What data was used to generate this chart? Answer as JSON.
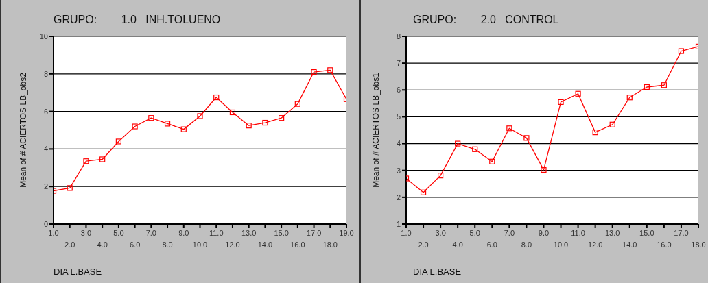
{
  "chart_data": [
    {
      "type": "line",
      "title": "GRUPO:        1.0   INH.TOLUENO",
      "xlabel": "DIA L.BASE",
      "ylabel": "Mean of # ACIERTOS LB_obs2",
      "categories": [
        "1.0",
        "2.0",
        "3.0",
        "4.0",
        "5.0",
        "6.0",
        "7.0",
        "8.0",
        "9.0",
        "10.0",
        "11.0",
        "12.0",
        "13.0",
        "14.0",
        "15.0",
        "16.0",
        "17.0",
        "18.0",
        "19.0"
      ],
      "series": [
        {
          "color": "#ff0000",
          "values": [
            1.77,
            1.92,
            3.35,
            3.45,
            4.4,
            5.2,
            5.65,
            5.35,
            5.05,
            5.75,
            6.75,
            5.95,
            5.25,
            5.4,
            5.65,
            6.4,
            8.1,
            8.2,
            6.65
          ]
        }
      ],
      "ylim": [
        0,
        10
      ],
      "yticks": [
        0,
        2,
        4,
        6,
        8,
        10
      ],
      "grid": "y",
      "marker": "square",
      "legend": false
    },
    {
      "type": "line",
      "title": "GRUPO:        2.0   CONTROL",
      "xlabel": "DIA L.BASE",
      "ylabel": "Mean of # ACIERTOS LB_obs1",
      "categories": [
        "1.0",
        "2.0",
        "3.0",
        "4.0",
        "5.0",
        "6.0",
        "7.0",
        "8.0",
        "9.0",
        "10.0",
        "11.0",
        "12.0",
        "13.0",
        "14.0",
        "15.0",
        "16.0",
        "17.0",
        "18.0"
      ],
      "series": [
        {
          "color": "#ff0000",
          "values": [
            2.7,
            2.18,
            2.81,
            4.0,
            3.79,
            3.33,
            4.57,
            4.21,
            3.02,
            5.55,
            5.86,
            4.42,
            4.71,
            5.72,
            6.11,
            6.18,
            7.45,
            7.62
          ]
        }
      ],
      "ylim": [
        1,
        8
      ],
      "yticks": [
        1,
        2,
        3,
        4,
        5,
        6,
        7,
        8
      ],
      "grid": "y",
      "marker": "square",
      "legend": false
    }
  ]
}
